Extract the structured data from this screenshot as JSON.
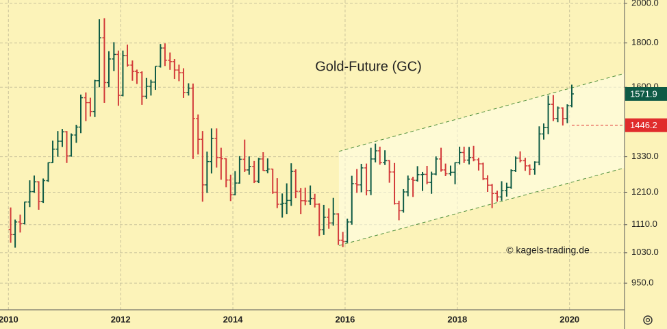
{
  "chart_data": {
    "type": "ohlc",
    "title": "Gold-Future (GC)",
    "watermark": "© kagels-trading.de",
    "log_scale": true,
    "grid": true,
    "up_color": "#0e5a45",
    "down_color": "#d23a3a",
    "xlim": [
      2009.85,
      2020.98
    ],
    "xticks": [
      2010,
      2012,
      2014,
      2016,
      2018,
      2020
    ],
    "ylim": [
      885,
      2018
    ],
    "yticks": [
      {
        "value": 950,
        "label": "950.0"
      },
      {
        "value": 1030,
        "label": "1030.0"
      },
      {
        "value": 1110,
        "label": "1110.0"
      },
      {
        "value": 1210,
        "label": "1210.0"
      },
      {
        "value": 1330,
        "label": "1330.0"
      },
      {
        "value": 1600,
        "label": "1600.0"
      },
      {
        "value": 1800,
        "label": "1800.0"
      },
      {
        "value": 2000,
        "label": "2000.0"
      }
    ],
    "ohlc": {
      "x": [
        2010.04,
        2010.12,
        2010.21,
        2010.29,
        2010.38,
        2010.46,
        2010.54,
        2010.62,
        2010.71,
        2010.79,
        2010.88,
        2010.96,
        2011.04,
        2011.12,
        2011.21,
        2011.29,
        2011.38,
        2011.46,
        2011.54,
        2011.62,
        2011.71,
        2011.79,
        2011.88,
        2011.96,
        2012.04,
        2012.12,
        2012.21,
        2012.29,
        2012.38,
        2012.46,
        2012.54,
        2012.62,
        2012.71,
        2012.79,
        2012.88,
        2012.96,
        2013.04,
        2013.12,
        2013.21,
        2013.29,
        2013.38,
        2013.46,
        2013.54,
        2013.62,
        2013.71,
        2013.79,
        2013.88,
        2013.96,
        2014.04,
        2014.12,
        2014.21,
        2014.29,
        2014.38,
        2014.46,
        2014.54,
        2014.62,
        2014.71,
        2014.79,
        2014.88,
        2014.96,
        2015.04,
        2015.12,
        2015.21,
        2015.29,
        2015.38,
        2015.46,
        2015.54,
        2015.62,
        2015.71,
        2015.79,
        2015.88,
        2015.96,
        2016.04,
        2016.12,
        2016.21,
        2016.29,
        2016.38,
        2016.46,
        2016.54,
        2016.62,
        2016.71,
        2016.79,
        2016.88,
        2016.96,
        2017.04,
        2017.12,
        2017.21,
        2017.29,
        2017.38,
        2017.46,
        2017.54,
        2017.62,
        2017.71,
        2017.79,
        2017.88,
        2017.96,
        2018.04,
        2018.12,
        2018.21,
        2018.29,
        2018.38,
        2018.46,
        2018.54,
        2018.62,
        2018.71,
        2018.79,
        2018.88,
        2018.96,
        2019.04,
        2019.12,
        2019.21,
        2019.29,
        2019.38,
        2019.46,
        2019.54,
        2019.62,
        2019.71,
        2019.79,
        2019.88,
        2019.96,
        2020.04
      ],
      "open": [
        1096,
        1081,
        1118,
        1113,
        1179,
        1212,
        1244,
        1181,
        1248,
        1309,
        1357,
        1386,
        1421,
        1333,
        1409,
        1439,
        1556,
        1536,
        1500,
        1628,
        1825,
        1620,
        1725,
        1746,
        1566,
        1740,
        1697,
        1669,
        1664,
        1562,
        1604,
        1622,
        1692,
        1776,
        1719,
        1713,
        1675,
        1663,
        1578,
        1596,
        1472,
        1393,
        1234,
        1313,
        1396,
        1327,
        1323,
        1250,
        1202,
        1240,
        1321,
        1284,
        1296,
        1246,
        1322,
        1282,
        1287,
        1210,
        1172,
        1175,
        1184,
        1279,
        1213,
        1183,
        1182,
        1190,
        1172,
        1095,
        1132,
        1115,
        1142,
        1065,
        1061,
        1118,
        1238,
        1234,
        1291,
        1215,
        1322,
        1351,
        1309,
        1316,
        1277,
        1174,
        1152,
        1211,
        1253,
        1249,
        1268,
        1269,
        1242,
        1270,
        1322,
        1284,
        1271,
        1276,
        1309,
        1345,
        1318,
        1327,
        1319,
        1305,
        1254,
        1233,
        1206,
        1195,
        1215,
        1226,
        1282,
        1325,
        1316,
        1298,
        1286,
        1311,
        1413,
        1437,
        1529,
        1472,
        1514,
        1472,
        1523
      ],
      "high": [
        1162,
        1125,
        1140,
        1180,
        1249,
        1265,
        1246,
        1255,
        1310,
        1388,
        1424,
        1432,
        1424,
        1415,
        1448,
        1569,
        1578,
        1556,
        1632,
        1917,
        1923,
        1761,
        1804,
        1764,
        1764,
        1792,
        1718,
        1677,
        1669,
        1640,
        1632,
        1692,
        1795,
        1798,
        1755,
        1725,
        1699,
        1683,
        1617,
        1616,
        1488,
        1424,
        1348,
        1434,
        1434,
        1362,
        1324,
        1268,
        1280,
        1332,
        1392,
        1331,
        1315,
        1326,
        1346,
        1324,
        1288,
        1256,
        1206,
        1239,
        1307,
        1286,
        1224,
        1225,
        1232,
        1205,
        1175,
        1170,
        1159,
        1192,
        1144,
        1089,
        1128,
        1264,
        1287,
        1305,
        1306,
        1362,
        1377,
        1366,
        1353,
        1318,
        1308,
        1183,
        1220,
        1265,
        1261,
        1297,
        1277,
        1298,
        1278,
        1331,
        1362,
        1306,
        1299,
        1310,
        1366,
        1366,
        1365,
        1369,
        1326,
        1309,
        1266,
        1237,
        1215,
        1246,
        1241,
        1286,
        1331,
        1349,
        1326,
        1303,
        1314,
        1442,
        1453,
        1565,
        1567,
        1520,
        1517,
        1529,
        1611
      ],
      "low": [
        1058,
        1044,
        1087,
        1111,
        1163,
        1208,
        1155,
        1176,
        1244,
        1308,
        1330,
        1365,
        1308,
        1330,
        1380,
        1416,
        1462,
        1480,
        1478,
        1600,
        1535,
        1600,
        1670,
        1523,
        1562,
        1690,
        1628,
        1614,
        1527,
        1552,
        1565,
        1589,
        1686,
        1693,
        1676,
        1636,
        1626,
        1555,
        1565,
        1322,
        1338,
        1180,
        1208,
        1272,
        1292,
        1251,
        1226,
        1182,
        1200,
        1238,
        1277,
        1268,
        1240,
        1240,
        1281,
        1273,
        1205,
        1160,
        1131,
        1142,
        1167,
        1191,
        1142,
        1169,
        1170,
        1162,
        1077,
        1080,
        1098,
        1107,
        1052,
        1046,
        1058,
        1110,
        1208,
        1210,
        1200,
        1201,
        1310,
        1302,
        1301,
        1241,
        1171,
        1123,
        1146,
        1197,
        1195,
        1245,
        1214,
        1236,
        1205,
        1266,
        1278,
        1263,
        1264,
        1236,
        1303,
        1308,
        1303,
        1314,
        1282,
        1250,
        1211,
        1160,
        1180,
        1183,
        1196,
        1221,
        1277,
        1310,
        1281,
        1267,
        1268,
        1300,
        1392,
        1412,
        1462,
        1458,
        1445,
        1454,
        1517
      ],
      "close": [
        1081,
        1118,
        1113,
        1179,
        1212,
        1244,
        1181,
        1248,
        1309,
        1357,
        1386,
        1421,
        1333,
        1409,
        1439,
        1556,
        1536,
        1500,
        1628,
        1825,
        1620,
        1725,
        1746,
        1566,
        1740,
        1697,
        1669,
        1664,
        1562,
        1604,
        1622,
        1692,
        1776,
        1719,
        1713,
        1675,
        1663,
        1578,
        1596,
        1472,
        1393,
        1234,
        1313,
        1396,
        1327,
        1323,
        1250,
        1202,
        1240,
        1321,
        1284,
        1296,
        1246,
        1322,
        1282,
        1287,
        1210,
        1172,
        1175,
        1184,
        1279,
        1213,
        1183,
        1182,
        1190,
        1172,
        1095,
        1132,
        1115,
        1142,
        1065,
        1061,
        1118,
        1238,
        1234,
        1291,
        1215,
        1322,
        1351,
        1309,
        1316,
        1277,
        1174,
        1152,
        1211,
        1253,
        1249,
        1268,
        1269,
        1242,
        1270,
        1322,
        1284,
        1271,
        1276,
        1309,
        1345,
        1318,
        1327,
        1319,
        1305,
        1254,
        1233,
        1206,
        1195,
        1215,
        1226,
        1282,
        1325,
        1316,
        1298,
        1286,
        1311,
        1413,
        1437,
        1529,
        1472,
        1514,
        1472,
        1523,
        1571.9
      ]
    },
    "channel": {
      "color": "#4f8f3c",
      "x": [
        2015.89,
        2020.98
      ],
      "upper": [
        1349,
        1660
      ],
      "lower": [
        1050,
        1291
      ]
    },
    "price_labels": [
      {
        "value": 1571.9,
        "color": "#0e5a45"
      },
      {
        "value": 1446.2,
        "color": "#e02c2c"
      }
    ]
  }
}
